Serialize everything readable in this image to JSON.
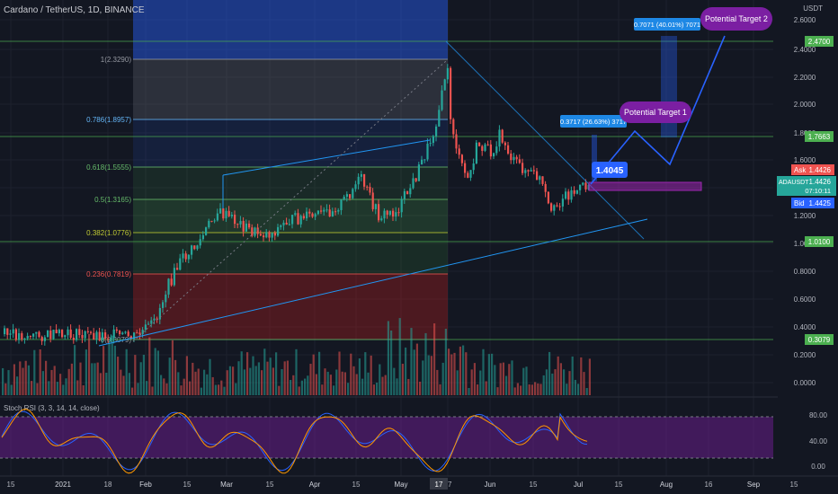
{
  "title": "Cardano / TetherUS, 1D, BINANCE",
  "currency": "USDT",
  "symbol": "ADAUSDT",
  "symbol_price": "1.4426",
  "countdown": "07:10:11",
  "ask": {
    "label": "Ask",
    "value": "1.4426"
  },
  "bid": {
    "label": "Bid",
    "value": "1.4425"
  },
  "price_axis": [
    "2.6000",
    "2.4000",
    "2.2000",
    "2.0000",
    "1.8000",
    "1.6000",
    "1.4000",
    "1.2000",
    "1.0000",
    "0.8000",
    "0.6000",
    "0.4000",
    "0.2000",
    "0.0000"
  ],
  "price_badges": [
    "2.4700",
    "1.7663",
    "1.0100",
    "0.3079"
  ],
  "fib_levels": [
    {
      "label": "1(2.3290)",
      "color": "#9598a1"
    },
    {
      "label": "0.786(1.8957)",
      "color": "#64b5f6"
    },
    {
      "label": "0.618(1.5555)",
      "color": "#66bb6a"
    },
    {
      "label": "0.5(1.3165)",
      "color": "#66bb6a"
    },
    {
      "label": "0.382(1.0776)",
      "color": "#c0ca33"
    },
    {
      "label": "0.236(0.7819)",
      "color": "#ef5350"
    },
    {
      "label": "0(0.3079)",
      "color": "#9598a1"
    }
  ],
  "annotations": {
    "target1": "Potential Target 1",
    "target2": "Potential Target 2",
    "measure1": "0.3717 (26.63%) 3717",
    "measure2": "0.7071 (40.01%) 7071",
    "price_tag": "1.4045"
  },
  "rsi": {
    "label": "Stoch RSI (3, 3, 14, 14, close)",
    "axis": [
      "80.00",
      "40.00",
      "0.00"
    ]
  },
  "time_axis": [
    "15",
    "2021",
    "18",
    "Feb",
    "15",
    "Mar",
    "15",
    "Apr",
    "15",
    "May",
    "17",
    "Jun",
    "15",
    "Jul",
    "15",
    "Aug",
    "16",
    "Sep",
    "15"
  ],
  "colors": {
    "up": "#26a69a",
    "down": "#ef5350",
    "accent": "#2962ff",
    "target": "#7b1fa2"
  }
}
